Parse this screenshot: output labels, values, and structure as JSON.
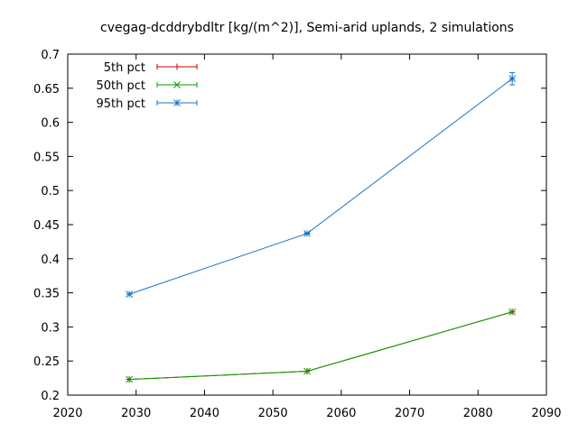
{
  "chart_data": {
    "type": "line",
    "title": "cvegag-dcddrybdltr [kg/(m^2)], Semi-arid uplands, 2 simulations",
    "xlabel": "",
    "ylabel": "",
    "xlim": [
      2020,
      2090
    ],
    "ylim": [
      0.2,
      0.7
    ],
    "x_ticks": [
      2020,
      2030,
      2040,
      2050,
      2060,
      2070,
      2080,
      2090
    ],
    "x_tick_labels": [
      "2020",
      "2030",
      "2040",
      "2050",
      "2060",
      "2070",
      "2080",
      "2090"
    ],
    "y_ticks": [
      0.2,
      0.25,
      0.3,
      0.35,
      0.4,
      0.45,
      0.5,
      0.55,
      0.6,
      0.65,
      0.7
    ],
    "y_tick_labels": [
      "0.2",
      "0.25",
      "0.3",
      "0.35",
      "0.4",
      "0.45",
      "0.5",
      "0.55",
      "0.6",
      "0.65",
      "0.7"
    ],
    "grid": false,
    "legend_position": "top-left",
    "x": [
      2029,
      2055,
      2085
    ],
    "series": [
      {
        "name": "5th pct",
        "color": "#cc0000",
        "marker": "plus",
        "values": [
          0.223,
          0.235,
          0.322
        ],
        "err_low": [
          0.223,
          0.235,
          0.322
        ],
        "err_high": [
          0.223,
          0.235,
          0.322
        ]
      },
      {
        "name": "50th pct",
        "color": "#00a000",
        "marker": "cross",
        "values": [
          0.223,
          0.235,
          0.322
        ],
        "err_low": [
          0.223,
          0.235,
          0.322
        ],
        "err_high": [
          0.223,
          0.235,
          0.322
        ]
      },
      {
        "name": "95th pct",
        "color": "#1a73c8",
        "marker": "star",
        "values": [
          0.348,
          0.437,
          0.664
        ],
        "err_low": [
          0.348,
          0.436,
          0.655
        ],
        "err_high": [
          0.348,
          0.438,
          0.673
        ]
      }
    ]
  }
}
